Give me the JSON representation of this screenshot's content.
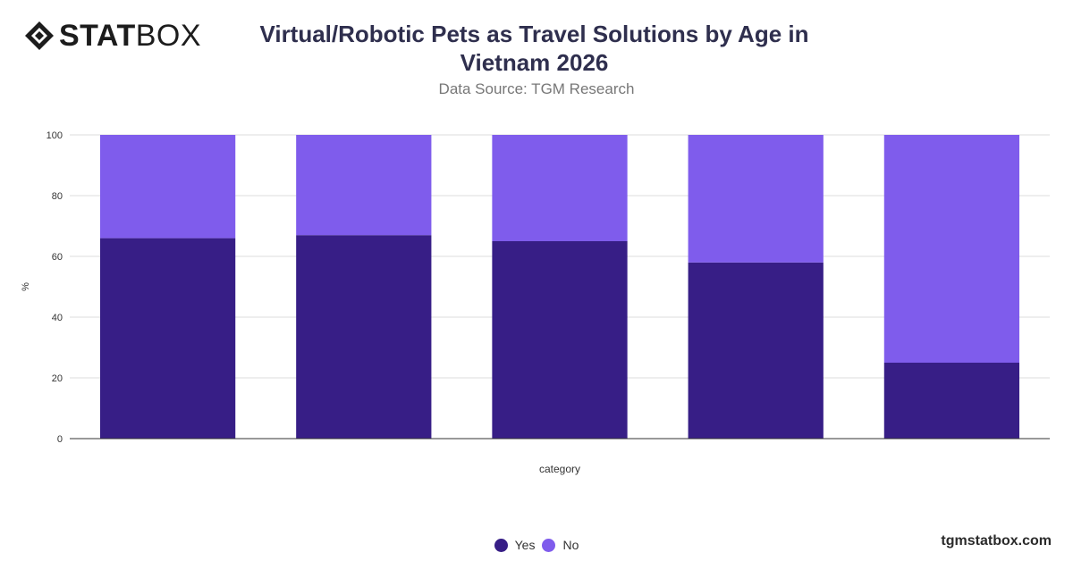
{
  "brand": {
    "logo_bold": "STAT",
    "logo_light": "BOX"
  },
  "footer": {
    "site": "tgmstatbox.com"
  },
  "chart_data": {
    "type": "bar",
    "stacked": true,
    "title": "Virtual/Robotic Pets as Travel Solutions by Age in Vietnam 2026",
    "subtitle": "Data Source: TGM Research",
    "xlabel": "category",
    "ylabel": "%",
    "ylim": [
      0,
      100
    ],
    "yticks": [
      0,
      20,
      40,
      60,
      80,
      100
    ],
    "categories": [
      "",
      "",
      "",
      "",
      ""
    ],
    "series": [
      {
        "name": "Yes",
        "color": "#371e86",
        "values": [
          66,
          67,
          65,
          58,
          25
        ]
      },
      {
        "name": "No",
        "color": "#7f5cec",
        "values": [
          34,
          33,
          35,
          42,
          75
        ]
      }
    ],
    "grid": true,
    "legend": "bottom-center"
  }
}
